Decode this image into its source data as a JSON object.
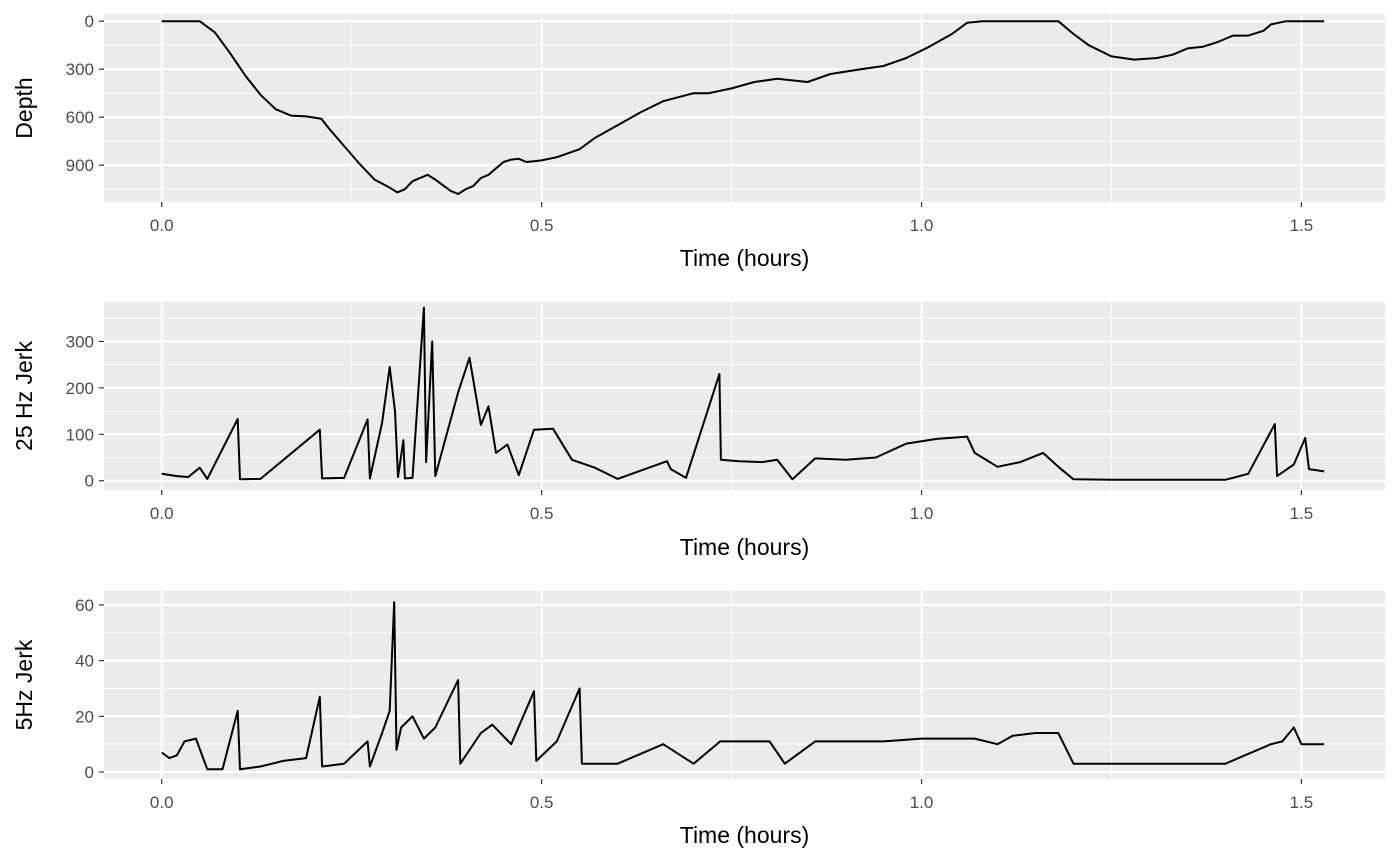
{
  "chart_data": [
    {
      "type": "line",
      "ylabel": "Depth",
      "xlabel": "Time (hours)",
      "x_reversed": false,
      "y_reversed": true,
      "xlim": [
        -0.076,
        1.61
      ],
      "ylim": [
        1130,
        -45
      ],
      "x_ticks": [
        0.0,
        0.5,
        1.0,
        1.5
      ],
      "x_tick_labels": [
        "0.0",
        "0.5",
        "1.0",
        "1.5"
      ],
      "y_ticks": [
        0,
        300,
        600,
        900
      ],
      "y_tick_labels": [
        "0",
        "300",
        "600",
        "900"
      ],
      "grid": true,
      "series": [
        {
          "x": [
            0.0,
            0.05,
            0.07,
            0.09,
            0.11,
            0.13,
            0.15,
            0.17,
            0.19,
            0.21,
            0.22,
            0.24,
            0.26,
            0.28,
            0.3,
            0.31,
            0.32,
            0.33,
            0.35,
            0.36,
            0.38,
            0.39,
            0.4,
            0.41,
            0.42,
            0.43,
            0.44,
            0.45,
            0.46,
            0.47,
            0.48,
            0.49,
            0.5,
            0.52,
            0.55,
            0.57,
            0.6,
            0.63,
            0.66,
            0.7,
            0.72,
            0.75,
            0.78,
            0.81,
            0.85,
            0.88,
            0.92,
            0.95,
            0.98,
            1.01,
            1.04,
            1.06,
            1.08,
            1.1,
            1.12,
            1.15,
            1.18,
            1.2,
            1.22,
            1.25,
            1.28,
            1.31,
            1.33,
            1.35,
            1.37,
            1.39,
            1.41,
            1.43,
            1.45,
            1.46,
            1.48,
            1.5,
            1.53
          ],
          "y": [
            0,
            0,
            70,
            200,
            340,
            460,
            550,
            590,
            595,
            610,
            670,
            780,
            890,
            990,
            1040,
            1070,
            1050,
            1000,
            960,
            990,
            1060,
            1080,
            1050,
            1030,
            980,
            960,
            920,
            880,
            865,
            860,
            880,
            875,
            870,
            850,
            800,
            730,
            650,
            570,
            500,
            450,
            450,
            420,
            380,
            360,
            380,
            330,
            300,
            280,
            230,
            160,
            80,
            10,
            0,
            0,
            0,
            0,
            0,
            80,
            150,
            220,
            240,
            230,
            210,
            170,
            160,
            130,
            90,
            90,
            60,
            20,
            0,
            0,
            0
          ]
        }
      ]
    },
    {
      "type": "line",
      "ylabel": "25 Hz Jerk",
      "xlabel": "Time (hours)",
      "xlim": [
        -0.076,
        1.61
      ],
      "ylim": [
        -20,
        385
      ],
      "x_ticks": [
        0.0,
        0.5,
        1.0,
        1.5
      ],
      "x_tick_labels": [
        "0.0",
        "0.5",
        "1.0",
        "1.5"
      ],
      "y_ticks": [
        0,
        100,
        200,
        300
      ],
      "y_tick_labels": [
        "0",
        "100",
        "200",
        "300"
      ],
      "grid": true,
      "series": [
        {
          "x": [
            0.0,
            0.02,
            0.035,
            0.05,
            0.06,
            0.1,
            0.103,
            0.13,
            0.208,
            0.211,
            0.24,
            0.271,
            0.274,
            0.29,
            0.3,
            0.307,
            0.311,
            0.318,
            0.32,
            0.33,
            0.345,
            0.348,
            0.356,
            0.36,
            0.37,
            0.39,
            0.405,
            0.42,
            0.43,
            0.44,
            0.455,
            0.47,
            0.49,
            0.515,
            0.54,
            0.57,
            0.6,
            0.665,
            0.67,
            0.69,
            0.734,
            0.736,
            0.76,
            0.79,
            0.81,
            0.83,
            0.86,
            0.9,
            0.94,
            0.98,
            1.02,
            1.06,
            1.07,
            1.1,
            1.13,
            1.16,
            1.18,
            1.2,
            1.25,
            1.3,
            1.35,
            1.4,
            1.43,
            1.465,
            1.468,
            1.49,
            1.505,
            1.51,
            1.53
          ],
          "y": [
            15,
            10,
            8,
            28,
            4,
            133,
            3,
            4,
            110,
            5,
            6,
            132,
            5,
            125,
            245,
            150,
            8,
            87,
            5,
            6,
            373,
            40,
            300,
            10,
            70,
            190,
            265,
            120,
            160,
            60,
            78,
            12,
            110,
            112,
            45,
            28,
            4,
            42,
            25,
            6,
            230,
            45,
            42,
            40,
            45,
            3,
            48,
            45,
            50,
            80,
            90,
            95,
            60,
            30,
            40,
            60,
            30,
            3,
            2,
            2,
            2,
            2,
            15,
            122,
            10,
            35,
            92,
            25,
            20
          ]
        }
      ]
    },
    {
      "type": "line",
      "ylabel": "5Hz Jerk",
      "xlabel": "Time (hours)",
      "xlim": [
        -0.076,
        1.61
      ],
      "ylim": [
        -2.5,
        65
      ],
      "x_ticks": [
        0.0,
        0.5,
        1.0,
        1.5
      ],
      "x_tick_labels": [
        "0.0",
        "0.5",
        "1.0",
        "1.5"
      ],
      "y_ticks": [
        0,
        20,
        40,
        60
      ],
      "y_tick_labels": [
        "0",
        "20",
        "40",
        "60"
      ],
      "grid": true,
      "series": [
        {
          "x": [
            0.0,
            0.01,
            0.02,
            0.03,
            0.045,
            0.06,
            0.08,
            0.1,
            0.103,
            0.13,
            0.16,
            0.19,
            0.208,
            0.211,
            0.24,
            0.271,
            0.274,
            0.29,
            0.3,
            0.306,
            0.309,
            0.315,
            0.33,
            0.345,
            0.36,
            0.39,
            0.393,
            0.42,
            0.435,
            0.46,
            0.49,
            0.493,
            0.52,
            0.55,
            0.553,
            0.6,
            0.66,
            0.7,
            0.735,
            0.77,
            0.8,
            0.82,
            0.86,
            0.88,
            0.95,
            1.0,
            1.05,
            1.07,
            1.1,
            1.12,
            1.15,
            1.18,
            1.2,
            1.28,
            1.33,
            1.4,
            1.46,
            1.475,
            1.49,
            1.5,
            1.53
          ],
          "y": [
            7,
            5,
            6,
            11,
            12,
            1,
            1,
            22,
            1,
            2,
            4,
            5,
            27,
            2,
            3,
            11,
            2,
            14,
            22,
            61,
            8,
            16,
            20,
            12,
            16,
            33,
            3,
            14,
            17,
            10,
            29,
            4,
            11,
            30,
            3,
            3,
            10,
            3,
            11,
            11,
            11,
            3,
            11,
            11,
            11,
            12,
            12,
            12,
            10,
            13,
            14,
            14,
            3,
            3,
            3,
            3,
            10,
            11,
            16,
            10,
            10
          ]
        }
      ]
    }
  ]
}
